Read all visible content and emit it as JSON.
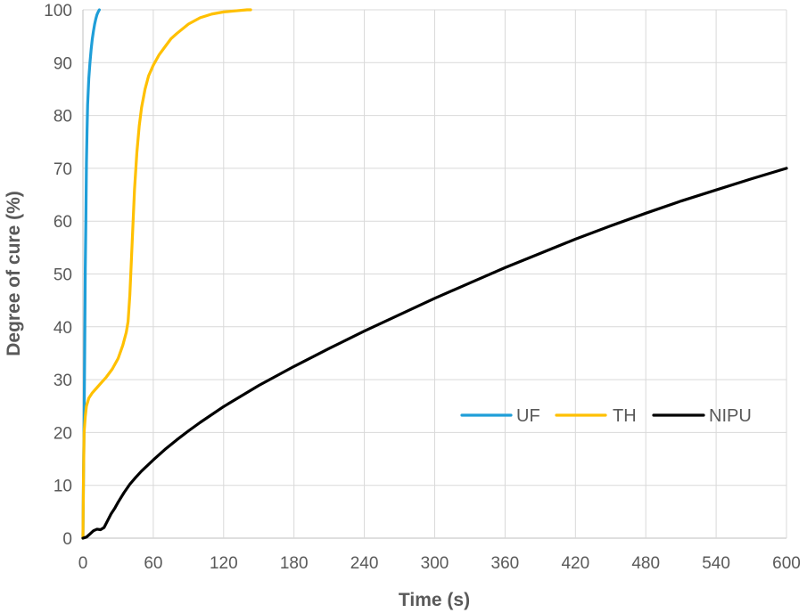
{
  "chart_data": {
    "type": "line",
    "xlabel": "Time (s)",
    "ylabel": "Degree of cure (%)",
    "xlim": [
      0,
      600
    ],
    "ylim": [
      0,
      100
    ],
    "xticks": [
      0,
      60,
      120,
      180,
      240,
      300,
      360,
      420,
      480,
      540,
      600
    ],
    "yticks": [
      0,
      10,
      20,
      30,
      40,
      50,
      60,
      70,
      80,
      90,
      100
    ],
    "grid": true,
    "legend_position": "lower-right",
    "series": [
      {
        "name": "UF",
        "color": "#1f9ed8",
        "x": [
          0,
          0.5,
          1,
          1.5,
          2,
          2.5,
          3,
          3.5,
          4,
          5,
          6,
          7,
          8,
          9,
          10,
          11,
          12,
          13,
          14
        ],
        "y": [
          0,
          12,
          22,
          35,
          51,
          60,
          71,
          77,
          82,
          87,
          90,
          92.5,
          94.5,
          96,
          97.3,
          98.3,
          99.1,
          99.6,
          100
        ]
      },
      {
        "name": "TH",
        "color": "#ffc000",
        "x": [
          0,
          0.5,
          1,
          2,
          3,
          5,
          8,
          12,
          16,
          20,
          25,
          30,
          34,
          37,
          38.5,
          40,
          42,
          44,
          46,
          48,
          50,
          53,
          56,
          60,
          65,
          70,
          75,
          80,
          90,
          100,
          110,
          120,
          130,
          140,
          143
        ],
        "y": [
          0,
          12,
          20,
          23,
          25,
          26.5,
          27.5,
          28.5,
          29.5,
          30.5,
          32,
          34,
          36.5,
          39,
          41,
          46,
          56,
          66,
          73,
          78,
          81.5,
          85,
          87.5,
          89.5,
          91.5,
          93,
          94.5,
          95.5,
          97.3,
          98.5,
          99.2,
          99.6,
          99.8,
          100,
          100
        ]
      },
      {
        "name": "NIPU",
        "color": "#000000",
        "x": [
          0,
          3,
          6,
          9,
          12,
          15,
          18,
          21,
          24,
          27,
          30,
          35,
          40,
          45,
          50,
          60,
          70,
          80,
          90,
          100,
          120,
          150,
          180,
          210,
          240,
          270,
          300,
          330,
          360,
          390,
          420,
          450,
          480,
          510,
          540,
          570,
          600
        ],
        "y": [
          0,
          0.2,
          0.8,
          1.4,
          1.7,
          1.6,
          2,
          3.3,
          4.6,
          5.6,
          6.8,
          8.6,
          10.2,
          11.5,
          12.7,
          14.8,
          16.8,
          18.6,
          20.3,
          21.9,
          24.9,
          28.9,
          32.5,
          35.9,
          39.2,
          42.3,
          45.4,
          48.3,
          51.2,
          53.9,
          56.6,
          59.1,
          61.5,
          63.8,
          65.9,
          68,
          70
        ]
      }
    ]
  }
}
